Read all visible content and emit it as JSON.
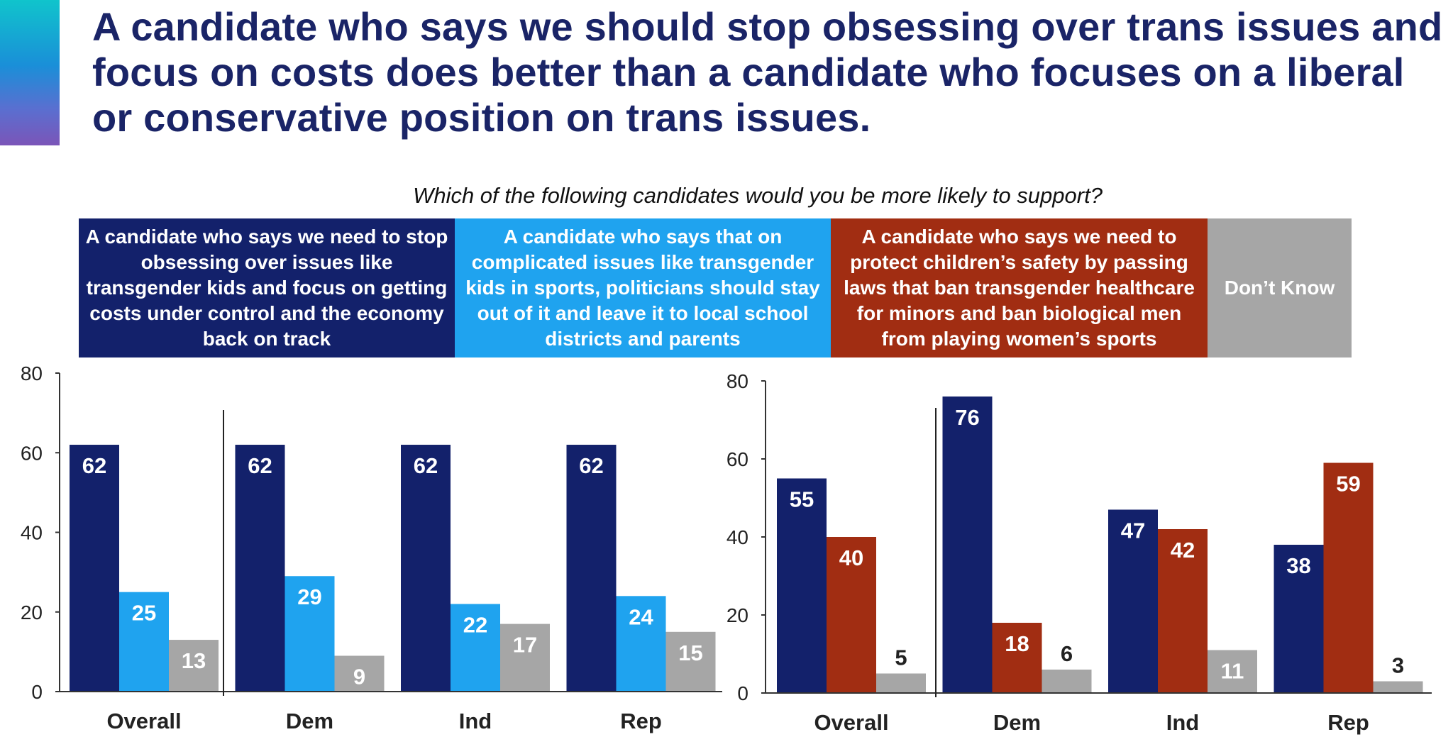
{
  "title": "A candidate who says we should stop obsessing over trans issues and focus on costs does better than a candidate who focuses on a liberal or conservative position on trans issues.",
  "question": "Which of the following candidates would you be more likely to support?",
  "legend": [
    {
      "label": "A candidate who says we need to stop obsessing over issues like transgender kids and focus on getting costs under control and the economy back on track",
      "color": "#13216b"
    },
    {
      "label": "A candidate who says that on complicated issues like transgender kids in sports, politicians should stay out of it and leave it to local school districts and parents",
      "color": "#1fa3ef"
    },
    {
      "label": "A candidate who says we need to protect children’s safety by passing laws that ban transgender healthcare for minors and ban biological men from playing women’s sports",
      "color": "#a12d12"
    },
    {
      "label": "Don’t Know",
      "color": "#a6a6a6"
    }
  ],
  "chart_data": [
    {
      "type": "bar",
      "title": "",
      "categories": [
        "Overall",
        "Dem",
        "Ind",
        "Rep"
      ],
      "series": [
        {
          "name": "Stop obsessing / focus on costs",
          "color": "#13216b",
          "values": [
            62,
            62,
            62,
            62
          ]
        },
        {
          "name": "Leave it to local school districts and parents",
          "color": "#1fa3ef",
          "values": [
            25,
            29,
            22,
            24
          ]
        },
        {
          "name": "Don’t Know",
          "color": "#a6a6a6",
          "values": [
            13,
            9,
            17,
            15
          ]
        }
      ],
      "ylim": [
        0,
        80
      ],
      "yticks": [
        "0",
        "20",
        "40",
        "60",
        "80"
      ],
      "xlabel": "",
      "ylabel": "",
      "grid": false
    },
    {
      "type": "bar",
      "title": "",
      "categories": [
        "Overall",
        "Dem",
        "Ind",
        "Rep"
      ],
      "series": [
        {
          "name": "Stop obsessing / focus on costs",
          "color": "#13216b",
          "values": [
            55,
            76,
            47,
            38
          ]
        },
        {
          "name": "Ban transgender healthcare for minors / women’s sports",
          "color": "#a12d12",
          "values": [
            40,
            18,
            42,
            59
          ]
        },
        {
          "name": "Don’t Know",
          "color": "#a6a6a6",
          "values": [
            5,
            6,
            11,
            3
          ]
        }
      ],
      "ylim": [
        0,
        80
      ],
      "yticks": [
        "0",
        "20",
        "40",
        "60",
        "80"
      ],
      "xlabel": "",
      "ylabel": "",
      "grid": false
    }
  ]
}
